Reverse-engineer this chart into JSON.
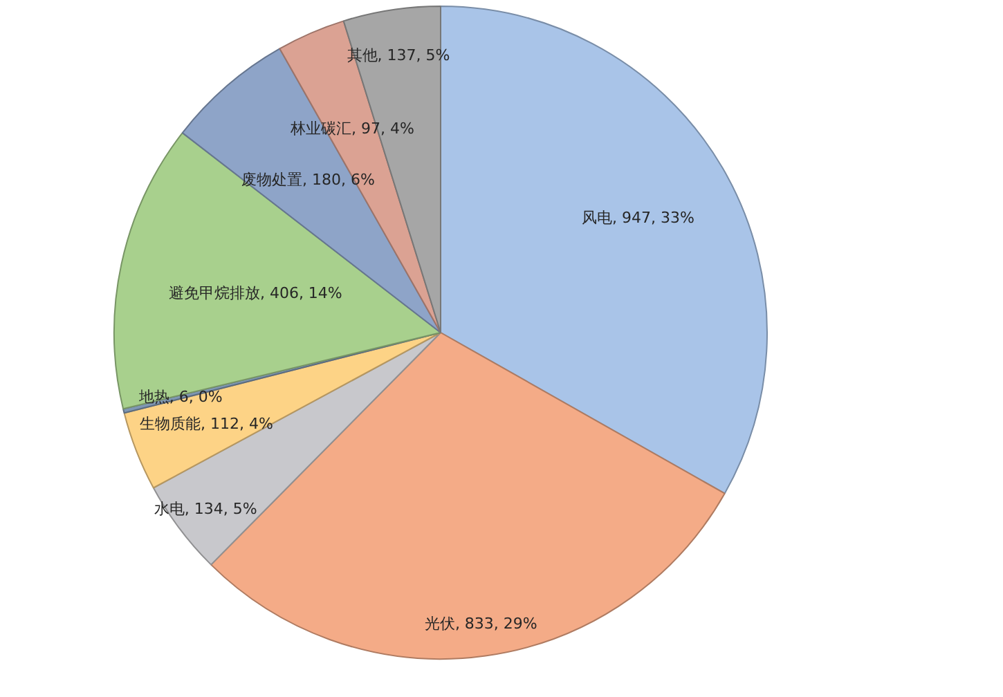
{
  "chart_data": {
    "type": "pie",
    "categories": [
      "风电",
      "光伏",
      "水电",
      "生物质能",
      "地热",
      "避免甲烷排放",
      "废物处置",
      "林业碳汇",
      "其他"
    ],
    "values": [
      947,
      833,
      134,
      112,
      6,
      406,
      180,
      97,
      137
    ],
    "value_labels": [
      "947, 33%",
      "833, 29%",
      "134, 5%",
      "112, 4%",
      "6, 0%",
      "406, 14%",
      "180, 6%",
      "97, 4%",
      "137, 5%"
    ],
    "colors": [
      "#a9c4e8",
      "#f4ab87",
      "#c8c8cc",
      "#fdd386",
      "#7f97b3",
      "#a8d08d",
      "#8ea4c8",
      "#dba293",
      "#a6a6a6"
    ]
  }
}
